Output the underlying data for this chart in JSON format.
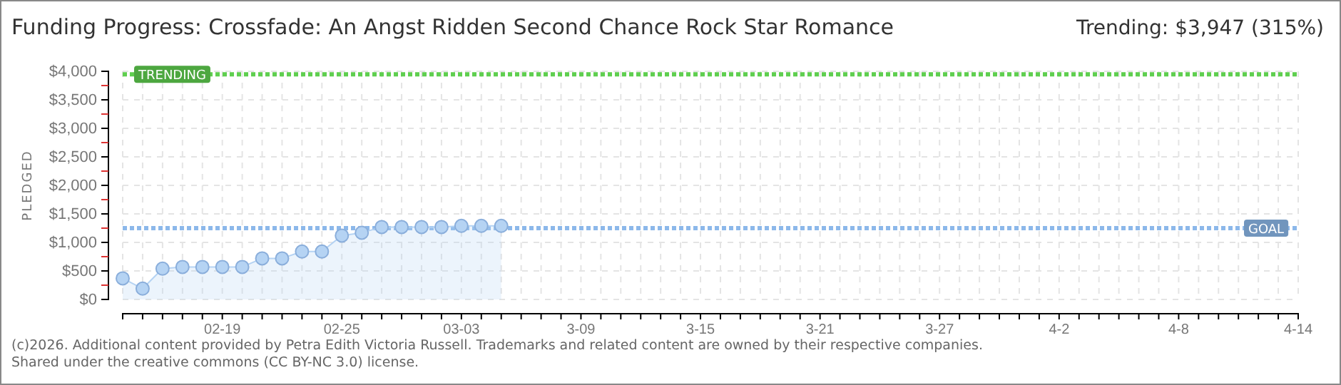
{
  "chart_data": {
    "type": "area",
    "title": "Funding Progress: Crossfade: An Angst Ridden Second Chance Rock Star Romance",
    "ylabel": "PLEDGED",
    "annotations": [
      "Trending: $3,947 (315%)",
      "(c)2026. Additional content provided by Petra Edith Victoria Russell. Trademarks and related content are owned by their respective companies.",
      "Shared under the creative commons (CC BY-NC 3.0) license."
    ],
    "x": [
      "--02-14",
      "--02-15",
      "--02-16",
      "--02-17",
      "--02-18",
      "--02-19",
      "--02-20",
      "--02-21",
      "--02-22",
      "--02-23",
      "--02-24",
      "--02-25",
      "--02-26",
      "--02-27",
      "--02-28",
      "--03-01",
      "--03-02",
      "--03-03",
      "--03-04",
      "--03-05"
    ],
    "series": [
      {
        "color": "#b5d3f3",
        "values": [
          370,
          190,
          540,
          570,
          570,
          570,
          570,
          720,
          720,
          840,
          840,
          1120,
          1170,
          1270,
          1270,
          1270,
          1270,
          1290,
          1290,
          1290
        ]
      }
    ],
    "marker": "circle",
    "grid": true,
    "xlim": [
      "--02-14",
      "--04-14"
    ],
    "xticks": [
      {
        "value": "--02-14",
        "label": null
      },
      {
        "value": "--02-15",
        "label": null
      },
      {
        "value": "--02-16",
        "label": null
      },
      {
        "value": "--02-17",
        "label": null
      },
      {
        "value": "--02-18",
        "label": null
      },
      {
        "value": "--02-19",
        "label": "02-19"
      },
      {
        "value": "--02-20",
        "label": null
      },
      {
        "value": "--02-21",
        "label": null
      },
      {
        "value": "--02-22",
        "label": null
      },
      {
        "value": "--02-23",
        "label": null
      },
      {
        "value": "--02-24",
        "label": null
      },
      {
        "value": "--02-25",
        "label": "02-25"
      },
      {
        "value": "--02-26",
        "label": null
      },
      {
        "value": "--02-27",
        "label": null
      },
      {
        "value": "--02-28",
        "label": null
      },
      {
        "value": "--03-01",
        "label": null
      },
      {
        "value": "--03-02",
        "label": null
      },
      {
        "value": "--03-03",
        "label": "03-03"
      },
      {
        "value": "--03-04",
        "label": null
      },
      {
        "value": "--03-05",
        "label": null
      },
      {
        "value": "--03-06",
        "label": null
      },
      {
        "value": "--03-07",
        "label": null
      },
      {
        "value": "--03-08",
        "label": null
      },
      {
        "value": "--03-09",
        "label": "3-09"
      },
      {
        "value": "--03-10",
        "label": null
      },
      {
        "value": "--03-11",
        "label": null
      },
      {
        "value": "--03-12",
        "label": null
      },
      {
        "value": "--03-13",
        "label": null
      },
      {
        "value": "--03-14",
        "label": null
      },
      {
        "value": "--03-15",
        "label": "3-15"
      },
      {
        "value": "--03-16",
        "label": null
      },
      {
        "value": "--03-17",
        "label": null
      },
      {
        "value": "--03-18",
        "label": null
      },
      {
        "value": "--03-19",
        "label": null
      },
      {
        "value": "--03-20",
        "label": null
      },
      {
        "value": "--03-21",
        "label": "3-21"
      },
      {
        "value": "--03-22",
        "label": null
      },
      {
        "value": "--03-23",
        "label": null
      },
      {
        "value": "--03-24",
        "label": null
      },
      {
        "value": "--03-25",
        "label": null
      },
      {
        "value": "--03-26",
        "label": null
      },
      {
        "value": "--03-27",
        "label": "3-27"
      },
      {
        "value": "--03-28",
        "label": null
      },
      {
        "value": "--03-29",
        "label": null
      },
      {
        "value": "--03-30",
        "label": null
      },
      {
        "value": "--03-31",
        "label": null
      },
      {
        "value": "--04-01",
        "label": null
      },
      {
        "value": "--04-02",
        "label": "4-2"
      },
      {
        "value": "--04-03",
        "label": null
      },
      {
        "value": "--04-04",
        "label": null
      },
      {
        "value": "--04-05",
        "label": null
      },
      {
        "value": "--04-06",
        "label": null
      },
      {
        "value": "--04-07",
        "label": null
      },
      {
        "value": "--04-08",
        "label": "4-8"
      },
      {
        "value": "--04-09",
        "label": null
      },
      {
        "value": "--04-10",
        "label": null
      },
      {
        "value": "--04-11",
        "label": null
      },
      {
        "value": "--04-12",
        "label": null
      },
      {
        "value": "--04-13",
        "label": null
      },
      {
        "value": "--04-14",
        "label": "4-14"
      }
    ],
    "ylim": [
      0,
      4000
    ],
    "yticks": [
      {
        "value": 0,
        "label": "$0"
      },
      {
        "value": 250,
        "label": null
      },
      {
        "value": 500,
        "label": "$500"
      },
      {
        "value": 750,
        "label": null
      },
      {
        "value": 1000,
        "label": "$1,000"
      },
      {
        "value": 1250,
        "label": null
      },
      {
        "value": 1500,
        "label": "$1,500"
      },
      {
        "value": 1750,
        "label": null
      },
      {
        "value": 2000,
        "label": "$2,000"
      },
      {
        "value": 2250,
        "label": null
      },
      {
        "value": 2500,
        "label": "$2,500"
      },
      {
        "value": 2750,
        "label": null
      },
      {
        "value": 3000,
        "label": "$3,000"
      },
      {
        "value": 3250,
        "label": null
      },
      {
        "value": 3500,
        "label": "$3,500"
      },
      {
        "value": 3750,
        "label": null
      },
      {
        "value": 4000,
        "label": "$4,000"
      }
    ],
    "ref_lines": [
      {
        "axis": "y",
        "value": 3947,
        "label": "TRENDING",
        "color": "#5fcf4f",
        "line_style": "dotted"
      },
      {
        "axis": "y",
        "value": 1250,
        "label": "GOAL",
        "color": "#8cb8ea",
        "line_style": "dotted"
      }
    ]
  }
}
